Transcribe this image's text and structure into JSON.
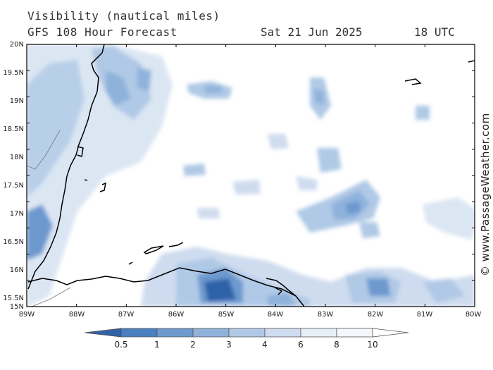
{
  "header": {
    "title": "Visibility (nautical miles)",
    "model": "GFS 108 Hour Forecast",
    "date": "Sat 21 Jun 2025",
    "time": "18 UTC"
  },
  "credit": "© www.PassageWeather.com",
  "map": {
    "lat_labels": [
      "20N",
      "19.5N",
      "19N",
      "18.5N",
      "18N",
      "17.5N",
      "17N",
      "16.5N",
      "16N",
      "15.5N",
      "15N"
    ],
    "lon_labels": [
      "89W",
      "88W",
      "87W",
      "86W",
      "85W",
      "84W",
      "83W",
      "82W",
      "81W",
      "80W"
    ]
  },
  "colorbar": {
    "labels": [
      "0.5",
      "1",
      "2",
      "3",
      "4",
      "6",
      "8",
      "10"
    ],
    "colors": [
      "#2f62a8",
      "#4a7fc0",
      "#6d99cf",
      "#8fb2db",
      "#b0c9e6",
      "#cfdcef",
      "#e6eef8",
      "#ffffff"
    ]
  }
}
